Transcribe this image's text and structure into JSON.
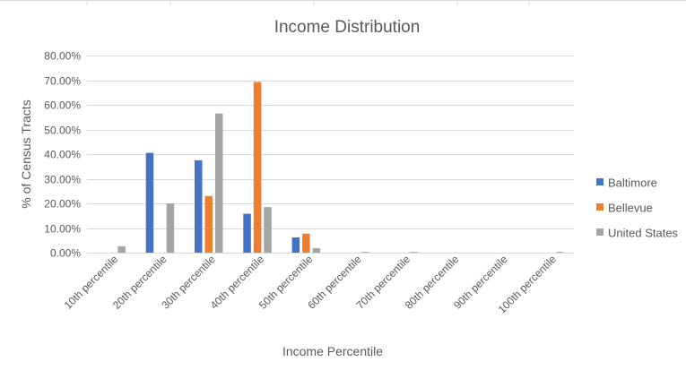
{
  "chart_data": {
    "type": "bar",
    "title": "Income Distribution",
    "xlabel": "Income Percentile",
    "ylabel": "% of Census Tracts",
    "categories": [
      "10th percentile",
      "20th percentile",
      "30th percentile",
      "40th percentile",
      "50th percentile",
      "60th percentile",
      "70th percentile",
      "80th percentile",
      "90th percentile",
      "100th percentile"
    ],
    "series": [
      {
        "name": "Baltimore",
        "color": "#4472c4",
        "values": [
          0,
          40.5,
          37.5,
          15.8,
          6.2,
          0,
          0,
          0,
          0,
          0
        ]
      },
      {
        "name": "Bellevue",
        "color": "#ed7d31",
        "values": [
          0,
          0,
          23.0,
          69.3,
          7.7,
          0,
          0,
          0,
          0,
          0
        ]
      },
      {
        "name": "United States",
        "color": "#a5a5a5",
        "values": [
          2.6,
          20.0,
          56.5,
          18.5,
          1.8,
          0.3,
          0.3,
          0,
          0,
          0.3
        ]
      }
    ],
    "ylim": [
      0,
      80
    ],
    "yticks": [
      "0.00%",
      "10.00%",
      "20.00%",
      "30.00%",
      "40.00%",
      "50.00%",
      "60.00%",
      "70.00%",
      "80.00%"
    ],
    "grid": true,
    "legend_position": "right"
  }
}
